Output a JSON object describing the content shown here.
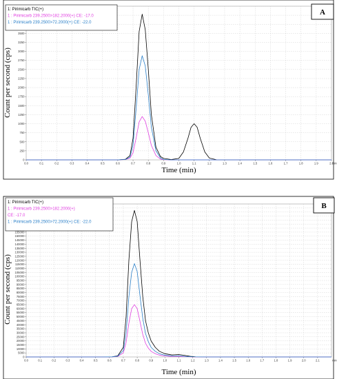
{
  "chart_data": [
    {
      "type": "line",
      "panel_label": "A",
      "xlabel": "Time (min)",
      "ylabel": "Count per second (cps)",
      "x_unit": "min",
      "xlim": [
        0.0,
        2.0
      ],
      "ylim": [
        0,
        4250
      ],
      "x_ticks": [
        "0.0",
        "0.1",
        "0.2",
        "0.3",
        "0.4",
        "0.5",
        "0.6",
        "0.7",
        "0.8",
        "0.9",
        "1.0",
        "1.1",
        "1.2",
        "1.3",
        "1.4",
        "1.5",
        "1.6",
        "1.7",
        "1.8",
        "1.9",
        "2.0"
      ],
      "y_ticks": [
        "0",
        "250",
        "500",
        "750",
        "1000",
        "1250",
        "1500",
        "1750",
        "2000",
        "2250",
        "2500",
        "2750",
        "3000",
        "3250",
        "3500",
        "3750",
        "4000",
        "4250"
      ],
      "grid": true,
      "legend_position": "top-left",
      "legend": [
        {
          "line1": "1: Pirimicarb TIC(+)",
          "line2": "",
          "color": "#000000"
        },
        {
          "line1": "1 : Pirimicarb 239.2500>182.2000(+) CE: -17.0",
          "line2": "",
          "color": "#e040e0"
        },
        {
          "line1": "1 : Pirimicarb 239.2500>72.2000(+) CE: -22.0",
          "line2": "",
          "color": "#2a7fc8"
        }
      ],
      "series": [
        {
          "color": "#000000",
          "x": [
            0.0,
            0.5,
            0.6,
            0.65,
            0.68,
            0.7,
            0.72,
            0.74,
            0.76,
            0.78,
            0.8,
            0.82,
            0.85,
            0.88,
            0.9,
            0.95,
            1.0,
            1.03,
            1.06,
            1.08,
            1.1,
            1.12,
            1.14,
            1.17,
            1.2,
            1.25,
            1.3,
            2.0
          ],
          "y": [
            0,
            0,
            0,
            15,
            120,
            600,
            2000,
            3550,
            4030,
            3600,
            2500,
            1250,
            350,
            90,
            40,
            10,
            40,
            220,
            600,
            900,
            1000,
            900,
            600,
            220,
            50,
            0,
            0,
            0
          ]
        },
        {
          "color": "#e040e0",
          "x": [
            0.0,
            0.5,
            0.6,
            0.65,
            0.68,
            0.7,
            0.72,
            0.74,
            0.76,
            0.78,
            0.8,
            0.82,
            0.85,
            0.88,
            0.9,
            0.95,
            1.0,
            2.0
          ],
          "y": [
            0,
            0,
            0,
            10,
            50,
            200,
            600,
            1050,
            1200,
            1070,
            750,
            400,
            120,
            20,
            5,
            0,
            0,
            0
          ]
        },
        {
          "color": "#2a7fc8",
          "x": [
            0.0,
            0.5,
            0.6,
            0.65,
            0.68,
            0.7,
            0.72,
            0.74,
            0.76,
            0.78,
            0.8,
            0.82,
            0.85,
            0.88,
            0.9,
            0.95,
            1.0,
            2.0
          ],
          "y": [
            0,
            0,
            0,
            10,
            80,
            400,
            1400,
            2500,
            2880,
            2600,
            1800,
            900,
            250,
            50,
            10,
            0,
            0,
            0
          ]
        }
      ]
    },
    {
      "type": "line",
      "panel_label": "B",
      "xlabel": "Time (min)",
      "ylabel": "Count per second (cps)",
      "x_unit": "min",
      "xlim": [
        0.0,
        2.2
      ],
      "ylim": [
        0,
        190000
      ],
      "x_ticks": [
        "0.0",
        "0.1",
        "0.2",
        "0.3",
        "0.4",
        "0.5",
        "0.6",
        "0.7",
        "0.8",
        "0.9",
        "1.0",
        "1.1",
        "1.2",
        "1.3",
        "1.4",
        "1.5",
        "1.6",
        "1.7",
        "1.8",
        "1.9",
        "2.0",
        "2.1"
      ],
      "y_ticks": [
        "0",
        "5000",
        "10000",
        "15000",
        "20000",
        "25000",
        "30000",
        "35000",
        "40000",
        "45000",
        "50000",
        "55000",
        "60000",
        "65000",
        "70000",
        "75000",
        "80000",
        "85000",
        "90000",
        "95000",
        "100000",
        "105000",
        "110000",
        "115000",
        "120000",
        "125000",
        "130000",
        "135000",
        "140000",
        "145000",
        "150000",
        "155000",
        "160000",
        "165000",
        "170000",
        "175000",
        "180000",
        "185000"
      ],
      "grid": true,
      "legend_position": "top-left",
      "legend": [
        {
          "line1": "1: Pirimicarb TIC(+)",
          "line2": "",
          "color": "#000000"
        },
        {
          "line1": "1 : Pirimicarb 239.2500>182.2000(+)",
          "line2": "CE: -17.0",
          "color": "#e040e0"
        },
        {
          "line1": "1 : Pirimicarb 239.2500>72.2000(+) CE: -22.0",
          "line2": "",
          "color": "#2a7fc8"
        }
      ],
      "series": [
        {
          "color": "#000000",
          "x": [
            0.0,
            0.55,
            0.62,
            0.66,
            0.7,
            0.72,
            0.74,
            0.76,
            0.78,
            0.8,
            0.82,
            0.84,
            0.86,
            0.88,
            0.9,
            0.93,
            0.96,
            1.0,
            1.05,
            1.1,
            1.14,
            1.18,
            1.22,
            1.3,
            2.2
          ],
          "y": [
            0,
            0,
            200,
            1500,
            12000,
            50000,
            120000,
            168000,
            182000,
            168000,
            120000,
            75000,
            45000,
            30000,
            20000,
            12000,
            7000,
            4000,
            2500,
            3000,
            2000,
            800,
            200,
            0,
            0
          ]
        },
        {
          "color": "#e040e0",
          "x": [
            0.0,
            0.55,
            0.62,
            0.66,
            0.7,
            0.72,
            0.74,
            0.76,
            0.78,
            0.8,
            0.82,
            0.84,
            0.86,
            0.88,
            0.9,
            0.93,
            0.96,
            1.0,
            1.05,
            1.1,
            1.15,
            1.2,
            1.3,
            2.2
          ],
          "y": [
            0,
            0,
            100,
            700,
            5000,
            18000,
            42000,
            60000,
            65000,
            60000,
            44000,
            28000,
            17000,
            11000,
            7000,
            4000,
            2200,
            1200,
            700,
            800,
            300,
            100,
            0,
            0
          ]
        },
        {
          "color": "#2a7fc8",
          "x": [
            0.0,
            0.55,
            0.62,
            0.66,
            0.7,
            0.72,
            0.74,
            0.76,
            0.78,
            0.8,
            0.82,
            0.84,
            0.86,
            0.88,
            0.9,
            0.93,
            0.96,
            1.0,
            1.05,
            1.1,
            1.15,
            1.2,
            1.3,
            2.2
          ],
          "y": [
            0,
            0,
            150,
            1000,
            8000,
            30000,
            75000,
            105000,
            116000,
            106000,
            76000,
            48000,
            29000,
            19000,
            12000,
            7000,
            4000,
            2200,
            1300,
            1500,
            600,
            200,
            0,
            0
          ]
        }
      ]
    }
  ]
}
